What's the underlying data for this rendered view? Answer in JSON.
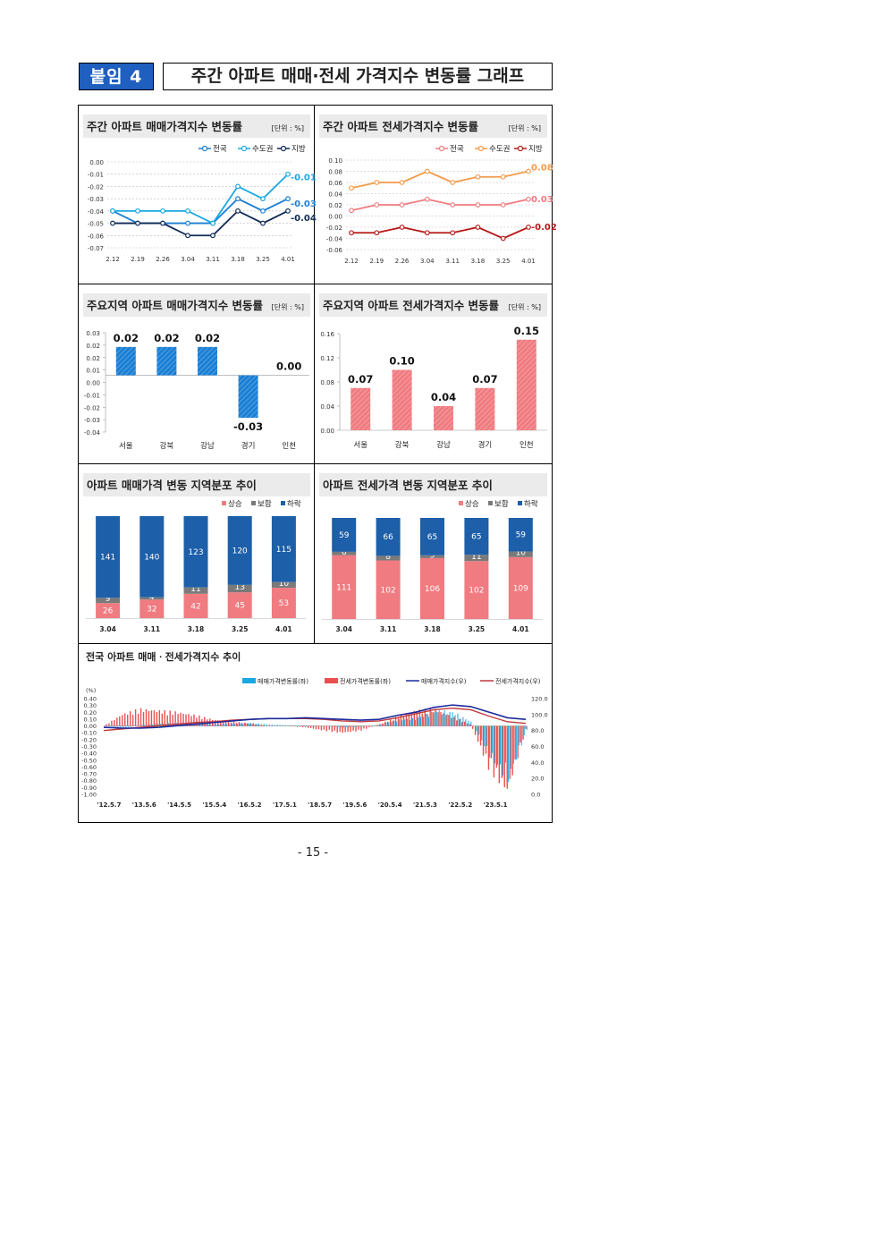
{
  "header": {
    "tag": "붙임 4",
    "title": "주간 아파트 매매·전세 가격지수 변동률 그래프"
  },
  "footer": {
    "page": "- 15 -"
  },
  "colors": {
    "blue": "#1a7fd4",
    "darkblue": "#0f2a55",
    "cyan": "#19a8e0",
    "red": "#f07b80",
    "orange": "#f39b4b",
    "darkred": "#b81818",
    "gray": "#7a7a7a",
    "navy": "#1d5fa8"
  },
  "chart_data": [
    {
      "type": "line",
      "title": "주간 아파트 매매가격지수 변동률",
      "unit": "[단위 : %]",
      "x": [
        "2.12",
        "2.19",
        "2.26",
        "3.04",
        "3.11",
        "3.18",
        "3.25",
        "4.01"
      ],
      "ylim": [
        -0.07,
        0.0
      ],
      "yticks": [
        "0.00",
        "-0.01",
        "-0.02",
        "-0.03",
        "-0.04",
        "-0.05",
        "-0.06",
        "-0.07"
      ],
      "series": [
        {
          "name": "전국",
          "values": [
            -0.04,
            -0.05,
            -0.05,
            -0.05,
            -0.05,
            -0.03,
            -0.04,
            -0.03
          ],
          "end_label": "-0.03"
        },
        {
          "name": "수도권",
          "values": [
            -0.04,
            -0.04,
            -0.04,
            -0.04,
            -0.05,
            -0.02,
            -0.03,
            -0.01
          ],
          "end_label": "-0.01"
        },
        {
          "name": "지방",
          "values": [
            -0.05,
            -0.05,
            -0.05,
            -0.06,
            -0.06,
            -0.04,
            -0.05,
            -0.04
          ],
          "end_label": "-0.04"
        }
      ]
    },
    {
      "type": "line",
      "title": "주간 아파트 전세가격지수 변동률",
      "unit": "[단위 : %]",
      "x": [
        "2.12",
        "2.19",
        "2.26",
        "3.04",
        "3.11",
        "3.18",
        "3.25",
        "4.01"
      ],
      "ylim": [
        -0.06,
        0.1
      ],
      "yticks": [
        "0.10",
        "0.08",
        "0.06",
        "0.04",
        "0.02",
        "0.00",
        "-0.02",
        "-0.04",
        "-0.06"
      ],
      "series": [
        {
          "name": "전국",
          "values": [
            0.01,
            0.02,
            0.02,
            0.03,
            0.02,
            0.02,
            0.02,
            0.03
          ],
          "end_label": "0.03"
        },
        {
          "name": "수도권",
          "values": [
            0.05,
            0.06,
            0.06,
            0.08,
            0.06,
            0.07,
            0.07,
            0.08
          ],
          "end_label": "0.08"
        },
        {
          "name": "지방",
          "values": [
            -0.03,
            -0.03,
            -0.02,
            -0.03,
            -0.03,
            -0.02,
            -0.04,
            -0.02
          ],
          "end_label": "-0.02"
        }
      ]
    },
    {
      "type": "bar",
      "title": "주요지역 아파트 매매가격지수 변동률",
      "unit": "[단위 : %]",
      "categories": [
        "서울",
        "강북",
        "강남",
        "경기",
        "인천"
      ],
      "values": [
        0.02,
        0.02,
        0.02,
        -0.03,
        0.0
      ],
      "labels": [
        "0.02",
        "0.02",
        "0.02",
        "-0.03",
        "0.00"
      ],
      "ylim": [
        -0.04,
        0.03
      ],
      "yticks": [
        "0.03",
        "0.02",
        "0.02",
        "0.01",
        "0.00",
        "-0.01",
        "-0.02",
        "-0.03",
        "-0.04"
      ]
    },
    {
      "type": "bar",
      "title": "주요지역 아파트 전세가격지수 변동률",
      "unit": "[단위 : %]",
      "categories": [
        "서울",
        "강북",
        "강남",
        "경기",
        "인천"
      ],
      "values": [
        0.07,
        0.1,
        0.04,
        0.07,
        0.15
      ],
      "labels": [
        "0.07",
        "0.10",
        "0.04",
        "0.07",
        "0.15"
      ],
      "ylim": [
        0,
        0.16
      ],
      "yticks": [
        "0.16",
        "0.12",
        "0.08",
        "0.04",
        "0.00"
      ]
    },
    {
      "type": "bar",
      "stacked": true,
      "title": "아파트 매매가격 변동 지역분포 추이",
      "categories": [
        "3.04",
        "3.11",
        "3.18",
        "3.25",
        "4.01"
      ],
      "series": [
        {
          "name": "상승",
          "values": [
            26,
            32,
            42,
            45,
            53
          ]
        },
        {
          "name": "보합",
          "values": [
            9,
            4,
            11,
            13,
            10
          ]
        },
        {
          "name": "하락",
          "values": [
            141,
            140,
            123,
            120,
            115
          ]
        }
      ]
    },
    {
      "type": "bar",
      "stacked": true,
      "title": "아파트 전세가격 변동 지역분포 추이",
      "categories": [
        "3.04",
        "3.11",
        "3.18",
        "3.25",
        "4.01"
      ],
      "series": [
        {
          "name": "상승",
          "values": [
            111,
            102,
            106,
            102,
            109
          ]
        },
        {
          "name": "보합",
          "values": [
            6,
            8,
            5,
            11,
            10
          ]
        },
        {
          "name": "하락",
          "values": [
            59,
            66,
            65,
            65,
            59
          ]
        }
      ]
    },
    {
      "type": "area",
      "title": "전국 아파트 매매ㆍ전세가격지수 추이",
      "legend": [
        "매매가격변동률(좌)",
        "전세가격변동률(좌)",
        "매매가격지수(우)",
        "전세가격지수(우)"
      ],
      "left_unit": "(%)",
      "left_ticks": [
        "0.40",
        "0.30",
        "0.20",
        "0.10",
        "0.00",
        "-0.10",
        "-0.20",
        "-0.30",
        "-0.40",
        "-0.50",
        "-0.60",
        "-0.70",
        "-0.80",
        "-0.90",
        "-1.00"
      ],
      "right_ticks": [
        "120.0",
        "100.0",
        "80.0",
        "60.0",
        "40.0",
        "20.0",
        "0.0"
      ],
      "x": [
        "'12.5.7",
        "'13.5.6",
        "'14.5.5",
        "'15.5.4",
        "'16.5.2",
        "'17.5.1",
        "'18.5.7",
        "'19.5.6",
        "'20.5.4",
        "'21.5.3",
        "'22.5.2",
        "'23.5.1"
      ],
      "left_ylim": [
        -1.0,
        0.4
      ],
      "right_ylim": [
        0,
        120
      ],
      "sale_index": [
        84,
        83,
        83,
        84,
        86,
        88,
        90,
        92,
        94,
        95,
        95,
        96,
        95,
        94,
        93,
        94,
        99,
        103,
        109,
        112,
        110,
        103,
        96,
        94
      ],
      "jeonse_index": [
        80,
        82,
        84,
        86,
        88,
        90,
        91,
        93,
        94,
        95,
        95,
        95,
        94,
        92,
        91,
        92,
        96,
        101,
        106,
        108,
        106,
        98,
        91,
        89
      ],
      "sale_rate": [
        0.0,
        -0.03,
        0.01,
        0.03,
        0.04,
        0.03,
        0.02,
        0.03,
        0.04,
        0.02,
        0.01,
        0.01,
        0.0,
        -0.02,
        -0.01,
        0.02,
        0.08,
        0.1,
        0.2,
        0.18,
        0.05,
        -0.4,
        -0.7,
        -0.05
      ],
      "jeonse_rate": [
        0.0,
        0.15,
        0.22,
        0.2,
        0.18,
        0.14,
        0.08,
        0.06,
        0.03,
        0.0,
        0.0,
        -0.02,
        -0.06,
        -0.09,
        -0.06,
        0.02,
        0.12,
        0.2,
        0.22,
        0.12,
        0.02,
        -0.55,
        -0.85,
        -0.05
      ]
    }
  ]
}
